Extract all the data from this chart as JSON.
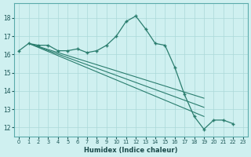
{
  "bg_color": "#cff0f0",
  "grid_color": "#aad8d8",
  "line_color": "#2a7d6e",
  "xlabel": "Humidex (Indice chaleur)",
  "ylim": [
    11.5,
    18.8
  ],
  "xlim": [
    -0.5,
    23.5
  ],
  "yticks": [
    12,
    13,
    14,
    15,
    16,
    17,
    18
  ],
  "xticks": [
    0,
    1,
    2,
    3,
    4,
    5,
    6,
    7,
    8,
    9,
    10,
    11,
    12,
    13,
    14,
    15,
    16,
    17,
    18,
    19,
    20,
    21,
    22,
    23
  ],
  "main_x": [
    0,
    1,
    2,
    3,
    4,
    5,
    6,
    7,
    8,
    9,
    10,
    11,
    12,
    13,
    14,
    15,
    16,
    17,
    18,
    19,
    20,
    21,
    22
  ],
  "main_y": [
    16.2,
    16.6,
    16.5,
    16.5,
    16.2,
    16.2,
    16.3,
    16.1,
    16.2,
    16.5,
    17.0,
    17.8,
    18.1,
    17.4,
    16.6,
    16.5,
    15.3,
    13.8,
    12.6,
    11.9,
    12.4,
    12.4,
    12.2
  ],
  "trend_lines": [
    {
      "x": [
        1,
        19
      ],
      "y": [
        16.6,
        12.6
      ]
    },
    {
      "x": [
        1,
        19
      ],
      "y": [
        16.6,
        13.1
      ]
    },
    {
      "x": [
        1,
        19
      ],
      "y": [
        16.6,
        13.6
      ]
    }
  ]
}
